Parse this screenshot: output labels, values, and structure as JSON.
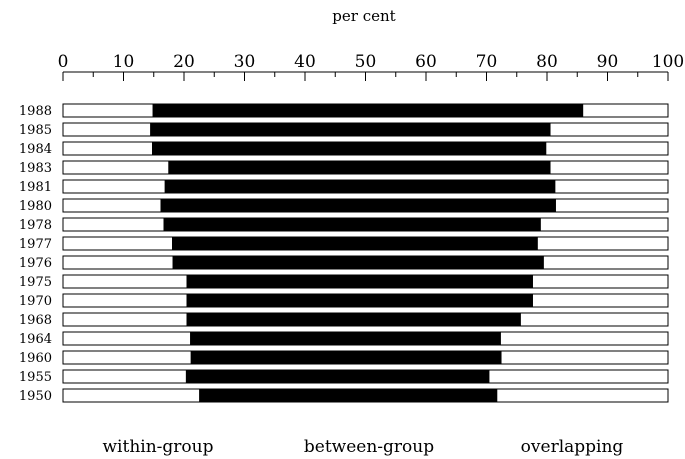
{
  "chart_data": {
    "type": "bar",
    "orientation": "horizontal",
    "stacked": true,
    "axis_title": "per cent",
    "xlim": [
      0,
      100
    ],
    "x_ticks": [
      0,
      10,
      20,
      30,
      40,
      50,
      60,
      70,
      80,
      90,
      100
    ],
    "categories": [
      "1988",
      "1985",
      "1984",
      "1983",
      "1981",
      "1980",
      "1978",
      "1977",
      "1976",
      "1975",
      "1970",
      "1968",
      "1964",
      "1960",
      "1955",
      "1950"
    ],
    "series": [
      {
        "name": "within-group",
        "color": "#ffffff",
        "values": [
          14.9,
          14.5,
          14.8,
          17.5,
          16.9,
          16.2,
          16.7,
          18.1,
          18.2,
          20.5,
          20.5,
          20.5,
          21.1,
          21.2,
          20.4,
          22.6
        ]
      },
      {
        "name": "between-group",
        "color": "#000000",
        "values": [
          71.0,
          66.0,
          65.0,
          63.0,
          64.4,
          65.2,
          62.2,
          60.3,
          61.2,
          57.1,
          57.1,
          55.1,
          51.2,
          51.2,
          50.0,
          49.1
        ]
      },
      {
        "name": "overlapping",
        "color": "#ffffff",
        "values": [
          14.1,
          19.5,
          20.2,
          19.5,
          18.7,
          18.6,
          21.1,
          21.6,
          20.6,
          22.4,
          22.4,
          24.4,
          27.7,
          27.6,
          29.6,
          28.3
        ]
      }
    ]
  }
}
